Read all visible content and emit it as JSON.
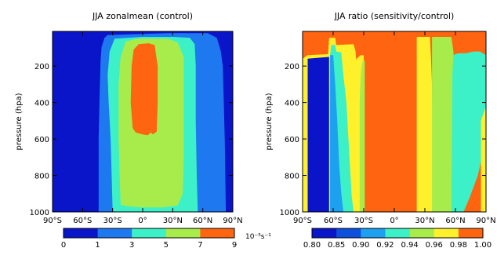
{
  "chart_data": [
    {
      "type": "contour",
      "title": "JJA zonalmean (control)",
      "xlabel": "",
      "ylabel": "pressure (hpa)",
      "x_ticks": [
        "90°S",
        "60°S",
        "30°S",
        "0°",
        "30°N",
        "60°N",
        "90°N"
      ],
      "x_tick_values": [
        -90,
        -60,
        -30,
        0,
        30,
        60,
        90
      ],
      "y_ticks": [
        "200",
        "400",
        "600",
        "800",
        "1000"
      ],
      "y_tick_values": [
        200,
        400,
        600,
        800,
        1000
      ],
      "xlim": [
        -90,
        90
      ],
      "ylim": [
        1000,
        10
      ],
      "y_inverted": true,
      "colorbar": {
        "levels": [
          "0",
          "1",
          "3",
          "5",
          "7",
          "9"
        ],
        "unit": "10⁻⁵s⁻¹",
        "colors": [
          "#0a14c8",
          "#1e78f0",
          "#3cf0c8",
          "#a8ec4c",
          "#ff6410"
        ]
      },
      "regions": [
        {
          "range": "0-1",
          "color": "#0a14c8",
          "polygon": [
            [
              -90,
              1000
            ],
            [
              -90,
              10
            ],
            [
              90,
              10
            ],
            [
              90,
              1000
            ]
          ]
        },
        {
          "range": "1-3",
          "color": "#1e78f0",
          "polygon": [
            [
              -44,
              1000
            ],
            [
              -44,
              600
            ],
            [
              -43,
              350
            ],
            [
              -42,
              170
            ],
            [
              -41,
              95
            ],
            [
              -38,
              45
            ],
            [
              -35,
              30
            ],
            [
              25,
              20
            ],
            [
              65,
              20
            ],
            [
              74,
              45
            ],
            [
              78,
              120
            ],
            [
              80,
              200
            ],
            [
              81,
              400
            ],
            [
              82,
              620
            ],
            [
              83,
              1000
            ]
          ]
        },
        {
          "range": "3-5",
          "color": "#3cf0c8",
          "polygon": [
            [
              -30,
              1000
            ],
            [
              -31,
              800
            ],
            [
              -32,
              600
            ],
            [
              -34,
              400
            ],
            [
              -35,
              250
            ],
            [
              -33,
              120
            ],
            [
              -28,
              50
            ],
            [
              0,
              40
            ],
            [
              30,
              40
            ],
            [
              47,
              45
            ],
            [
              52,
              80
            ],
            [
              53,
              200
            ],
            [
              53,
              500
            ],
            [
              54,
              800
            ],
            [
              55,
              1000
            ]
          ]
        },
        {
          "range": "5-7",
          "color": "#a8ec4c",
          "polygon": [
            [
              -22,
              960
            ],
            [
              -23,
              800
            ],
            [
              -24,
              600
            ],
            [
              -24,
              300
            ],
            [
              -22,
              150
            ],
            [
              -17,
              65
            ],
            [
              -5,
              50
            ],
            [
              25,
              50
            ],
            [
              35,
              70
            ],
            [
              41,
              150
            ],
            [
              41,
              400
            ],
            [
              41,
              700
            ],
            [
              40,
              900
            ],
            [
              35,
              965
            ],
            [
              20,
              975
            ],
            [
              0,
              975
            ],
            [
              -15,
              970
            ]
          ]
        },
        {
          "range": "7-9",
          "color": "#ff6410",
          "polygon": [
            [
              -10,
              540
            ],
            [
              -12,
              400
            ],
            [
              -11,
              200
            ],
            [
              -9,
              110
            ],
            [
              -4,
              80
            ],
            [
              6,
              75
            ],
            [
              12,
              85
            ],
            [
              15,
              200
            ],
            [
              15,
              400
            ],
            [
              14,
              560
            ],
            [
              10,
              575
            ],
            [
              8,
              565
            ],
            [
              5,
              580
            ],
            [
              0,
              575
            ],
            [
              -7,
              565
            ]
          ]
        }
      ]
    },
    {
      "type": "contour",
      "title": "JJA ratio (sensitivity/control)",
      "xlabel": "",
      "ylabel": "pressure (hpa)",
      "x_ticks": [
        "90°S",
        "60°S",
        "30°S",
        "0°",
        "30°N",
        "60°N",
        "90°N"
      ],
      "x_tick_values": [
        -90,
        -60,
        -30,
        0,
        30,
        60,
        90
      ],
      "y_ticks": [
        "200",
        "400",
        "600",
        "800",
        "1000"
      ],
      "y_tick_values": [
        200,
        400,
        600,
        800,
        1000
      ],
      "xlim": [
        -90,
        90
      ],
      "ylim": [
        1000,
        10
      ],
      "y_inverted": true,
      "colorbar": {
        "levels": [
          "0.80",
          "0.85",
          "0.90",
          "0.92",
          "0.94",
          "0.96",
          "0.98",
          "1.00"
        ],
        "unit": "",
        "colors": [
          "#0a14c8",
          "#0c50dc",
          "#1ea0f0",
          "#3cf0c8",
          "#a8ec4c",
          "#fff02c",
          "#ff6410"
        ]
      },
      "regions": [
        {
          "range": "0.98-1.00",
          "color": "#ff6410",
          "polygon": [
            [
              -90,
              1000
            ],
            [
              -90,
              10
            ],
            [
              90,
              10
            ],
            [
              90,
              1000
            ]
          ]
        },
        {
          "range": "0.96-0.98",
          "color": "#fff02c",
          "polygon": [
            [
              -90,
              1000
            ],
            [
              -90,
              160
            ],
            [
              -85,
              140
            ],
            [
              -65,
              135
            ],
            [
              -64,
              45
            ],
            [
              -58,
              45
            ],
            [
              -57,
              85
            ],
            [
              -40,
              80
            ],
            [
              -38,
              120
            ],
            [
              -37,
              200
            ],
            [
              -36,
              400
            ],
            [
              -36,
              700
            ],
            [
              -36,
              1000
            ]
          ]
        },
        {
          "range": "0.92-0.94",
          "color": "#3cf0c8",
          "polygon": [
            [
              -63,
              1000
            ],
            [
              -63,
              140
            ],
            [
              -62,
              85
            ],
            [
              -58,
              85
            ],
            [
              -57,
              120
            ],
            [
              -52,
              125
            ],
            [
              -50,
              250
            ],
            [
              -47,
              400
            ],
            [
              -44,
              700
            ],
            [
              -42,
              900
            ],
            [
              -40,
              1000
            ]
          ]
        },
        {
          "range": "0.90-0.92",
          "color": "#1ea0f0",
          "polygon": [
            [
              -63,
              1000
            ],
            [
              -63,
              140
            ],
            [
              -60,
              140
            ],
            [
              -58,
              300
            ],
            [
              -56,
              500
            ],
            [
              -54,
              750
            ],
            [
              -52,
              900
            ],
            [
              -50,
              1000
            ]
          ]
        },
        {
          "range": "0.80-0.85",
          "color": "#0a14c8",
          "polygon": [
            [
              -85,
              1000
            ],
            [
              -85,
              160
            ],
            [
              -64,
              150
            ],
            [
              -64,
              1000
            ]
          ]
        },
        {
          "range": "0.96-0.98",
          "color": "#fff02c",
          "polygon": [
            [
              -38,
              1000
            ],
            [
              -38,
              200
            ],
            [
              -37,
              160
            ],
            [
              -33,
              140
            ],
            [
              -30,
              140
            ],
            [
              -30,
              1000
            ]
          ]
        },
        {
          "range": "0.94-0.96",
          "color": "#a8ec4c",
          "polygon": [
            [
              -34,
              1000
            ],
            [
              -34,
              400
            ],
            [
              -33,
              250
            ],
            [
              -32,
              200
            ],
            [
              -31,
              170
            ],
            [
              -29,
              170
            ],
            [
              -29,
              1000
            ]
          ]
        },
        {
          "range": "0.96-0.98",
          "color": "#fff02c",
          "polygon": [
            [
              22,
              1000
            ],
            [
              22,
              40
            ],
            [
              35,
              40
            ],
            [
              36,
              160
            ],
            [
              37,
              300
            ],
            [
              38,
              700
            ],
            [
              38,
              1000
            ]
          ]
        },
        {
          "range": "0.94-0.96",
          "color": "#a8ec4c",
          "polygon": [
            [
              37,
              1000
            ],
            [
              37,
              40
            ],
            [
              56,
              40
            ],
            [
              58,
              120
            ],
            [
              60,
              400
            ],
            [
              62,
              700
            ],
            [
              64,
              1000
            ]
          ]
        },
        {
          "range": "0.92-0.94",
          "color": "#3cf0c8",
          "polygon": [
            [
              56,
              1000
            ],
            [
              57,
              250
            ],
            [
              58,
              140
            ],
            [
              62,
              130
            ],
            [
              70,
              130
            ],
            [
              78,
              120
            ],
            [
              84,
              120
            ],
            [
              90,
              140
            ],
            [
              90,
              600
            ],
            [
              82,
              800
            ],
            [
              74,
              920
            ],
            [
              68,
              1000
            ]
          ]
        },
        {
          "range": "0.96-0.98",
          "color": "#fff02c",
          "polygon": [
            [
              85,
              1000
            ],
            [
              85,
              500
            ],
            [
              90,
              420
            ],
            [
              90,
              1000
            ]
          ]
        }
      ]
    }
  ]
}
